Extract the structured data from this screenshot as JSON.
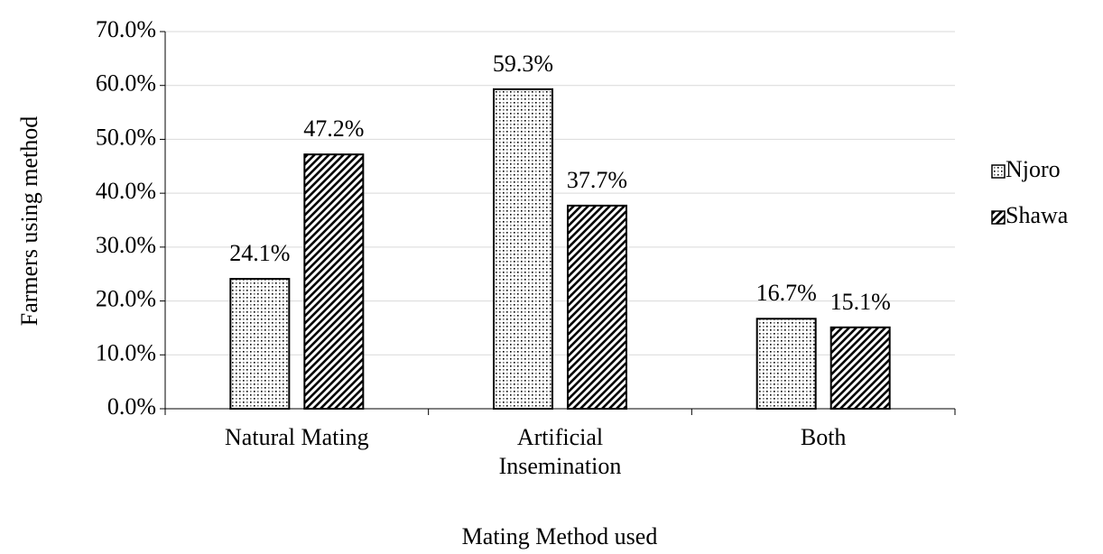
{
  "chart_data": {
    "type": "bar",
    "x_label": "Mating Method used",
    "y_label": "Farmers using method",
    "categories": [
      "Natural Mating",
      "Artificial Insemination",
      "Both"
    ],
    "series": [
      {
        "name": "Njoro",
        "color": "#000000",
        "pattern": "dots",
        "values": [
          24.1,
          59.3,
          16.7
        ],
        "value_labels": [
          "24.1%",
          "59.3%",
          "16.7%"
        ]
      },
      {
        "name": "Shawa",
        "color": "#000000",
        "pattern": "diagonal",
        "values": [
          47.2,
          37.7,
          15.1
        ],
        "value_labels": [
          "47.2%",
          "37.7%",
          "15.1%"
        ]
      }
    ],
    "ylim": [
      0,
      70
    ],
    "yticks": [
      {
        "value": 0,
        "label": "0.0%"
      },
      {
        "value": 10,
        "label": "10.0%"
      },
      {
        "value": 20,
        "label": "20.0%"
      },
      {
        "value": 30,
        "label": "30.0%"
      },
      {
        "value": 40,
        "label": "40.0%"
      },
      {
        "value": 50,
        "label": "50.0%"
      },
      {
        "value": 60,
        "label": "60.0%"
      },
      {
        "value": 70,
        "label": "70.0%"
      }
    ],
    "grid": true,
    "legend": "right"
  }
}
